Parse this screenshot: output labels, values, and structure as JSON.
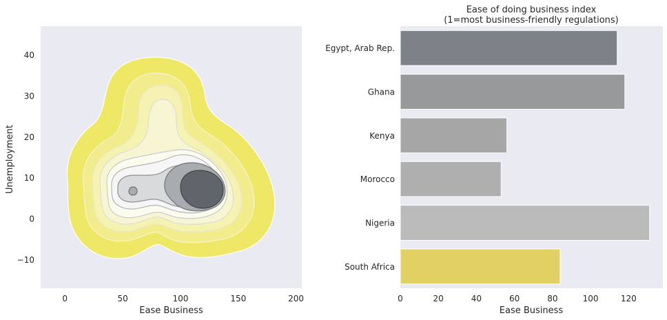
{
  "chart_data": [
    {
      "type": "kde-contour",
      "title": "",
      "xlabel": "Ease Business",
      "ylabel": "Unemployment",
      "xlim": [
        -21,
        205
      ],
      "ylim": [
        -17,
        47
      ],
      "xticks": [
        0,
        50,
        100,
        150,
        200
      ],
      "yticks": [
        -10,
        0,
        10,
        20,
        30,
        40
      ],
      "grid": false,
      "background": "#eaeaf2",
      "fill_levels": [
        {
          "level": 1,
          "color": "#efe866"
        },
        {
          "level": 2,
          "color": "#f2ec8c"
        },
        {
          "level": 3,
          "color": "#f5f2b2"
        },
        {
          "level": 4,
          "color": "#f8f6d2"
        },
        {
          "level": 5,
          "color": "#fbfbee"
        },
        {
          "level": 6,
          "color": "#f6f6f6"
        },
        {
          "level": 7,
          "color": "#d9dadb"
        },
        {
          "level": 8,
          "color": "#a9acaf"
        },
        {
          "level": 9,
          "color": "#5f656b"
        }
      ],
      "density_centers": [
        {
          "x": 114,
          "y": 8,
          "label": "peak"
        },
        {
          "x": 60,
          "y": 7,
          "label": "secondary"
        }
      ]
    },
    {
      "type": "bar",
      "orientation": "horizontal",
      "title": "Ease of doing business index",
      "subtitle": "(1=most business-friendly regulations)",
      "xlabel": "Ease Business",
      "ylabel": "",
      "categories": [
        "Egypt, Arab Rep.",
        "Ghana",
        "Kenya",
        "Morocco",
        "Nigeria",
        "South Africa"
      ],
      "values": [
        114,
        118,
        56,
        53,
        131,
        84
      ],
      "colors": [
        "#7d8288",
        "#98999b",
        "#a6a6a6",
        "#afafaf",
        "#bababa",
        "#e1d063"
      ],
      "xlim": [
        0,
        138
      ],
      "xticks": [
        0,
        20,
        40,
        60,
        80,
        100,
        120
      ],
      "grid": false,
      "background": "#eaeaf2"
    }
  ]
}
